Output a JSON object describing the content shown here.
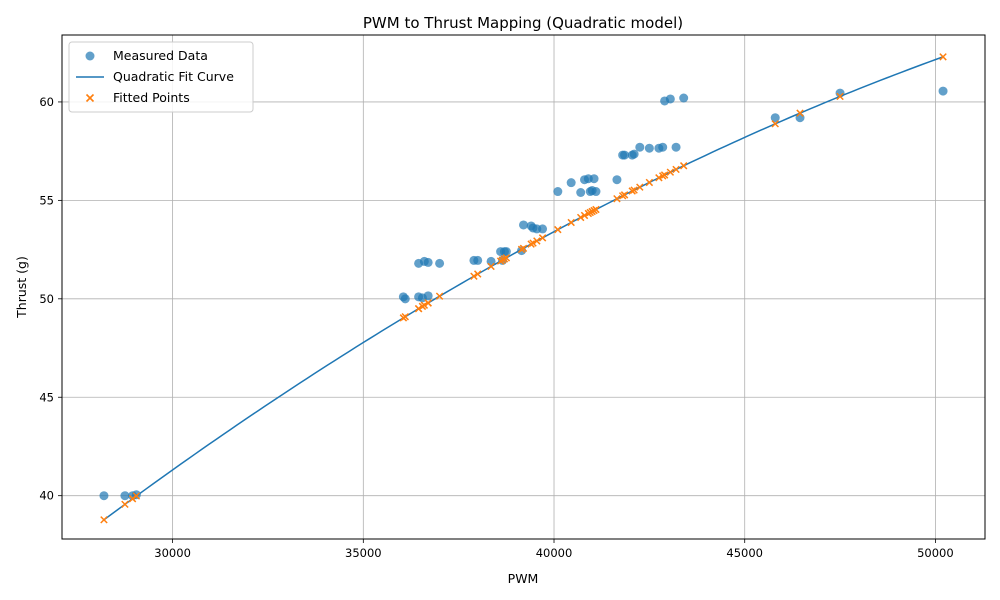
{
  "chart_data": {
    "type": "scatter",
    "title": "PWM to Thrust Mapping (Quadratic model)",
    "xlabel": "PWM",
    "ylabel": "Thrust (g)",
    "xlim": [
      27100,
      51300
    ],
    "ylim": [
      37.8,
      63.4
    ],
    "xticks": [
      "30000",
      "35000",
      "40000",
      "45000",
      "50000"
    ],
    "xtick_values": [
      30000,
      35000,
      40000,
      45000,
      50000
    ],
    "yticks": [
      "40",
      "45",
      "50",
      "55",
      "60"
    ],
    "ytick_values": [
      40,
      45,
      50,
      55,
      60
    ],
    "grid": true,
    "legend_position": "top-left",
    "legend": [
      "Measured Data",
      "Quadratic Fit Curve",
      "Fitted Points"
    ],
    "colors": {
      "measured": "#1f77b4",
      "fit": "#1f77b4",
      "fitted_points": "#ff7f0e"
    },
    "fit_coefficients": {
      "a": -1.68e-08,
      "b": 0.002386,
      "c": -15.15
    },
    "measured": [
      [
        28200,
        40.0
      ],
      [
        28750,
        40.0
      ],
      [
        28950,
        40.0
      ],
      [
        29050,
        40.05
      ],
      [
        36050,
        50.1
      ],
      [
        36100,
        50.0
      ],
      [
        36450,
        50.1
      ],
      [
        36550,
        50.05
      ],
      [
        36700,
        50.15
      ],
      [
        36450,
        51.8
      ],
      [
        36600,
        51.9
      ],
      [
        36700,
        51.85
      ],
      [
        37000,
        51.8
      ],
      [
        37900,
        51.95
      ],
      [
        38000,
        51.95
      ],
      [
        38350,
        51.9
      ],
      [
        38650,
        51.95
      ],
      [
        38600,
        52.4
      ],
      [
        38700,
        52.4
      ],
      [
        38750,
        52.4
      ],
      [
        39150,
        52.45
      ],
      [
        39200,
        53.75
      ],
      [
        39400,
        53.7
      ],
      [
        39450,
        53.6
      ],
      [
        39550,
        53.55
      ],
      [
        39700,
        53.55
      ],
      [
        40100,
        55.45
      ],
      [
        40450,
        55.9
      ],
      [
        40700,
        55.4
      ],
      [
        40800,
        56.05
      ],
      [
        40900,
        56.1
      ],
      [
        40950,
        55.45
      ],
      [
        41000,
        55.5
      ],
      [
        41050,
        56.1
      ],
      [
        41100,
        55.45
      ],
      [
        41650,
        56.05
      ],
      [
        41800,
        57.3
      ],
      [
        41850,
        57.3
      ],
      [
        42050,
        57.3
      ],
      [
        42100,
        57.35
      ],
      [
        42250,
        57.7
      ],
      [
        42500,
        57.65
      ],
      [
        42750,
        57.65
      ],
      [
        42850,
        57.7
      ],
      [
        42900,
        60.05
      ],
      [
        43050,
        60.15
      ],
      [
        43200,
        57.7
      ],
      [
        43400,
        60.2
      ],
      [
        45800,
        59.2
      ],
      [
        46450,
        59.2
      ],
      [
        47500,
        60.45
      ],
      [
        50200,
        60.55
      ]
    ]
  }
}
